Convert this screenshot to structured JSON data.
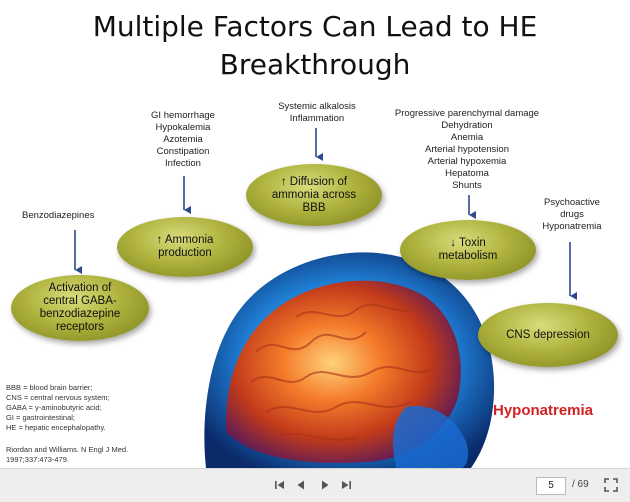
{
  "slide": {
    "title_line1": "Multiple Factors Can Lead to HE",
    "title_line2": "Breakthrough",
    "factors": {
      "benzodiazepines": [
        "Benzodiazepines"
      ],
      "gi": [
        "GI hemorrhage",
        "Hypokalemia",
        "Azotemia",
        "Constipation",
        "Infection"
      ],
      "systemic": [
        "Systemic alkalosis",
        "Inflammation"
      ],
      "progressive": [
        "Progressive parenchymal damage",
        "Dehydration",
        "Anemia",
        "Arterial hypotension",
        "Arterial hypoxemia",
        "Hepatoma",
        "Shunts"
      ],
      "psychoactive": [
        "Psychoactive",
        "drugs",
        "Hyponatremia"
      ]
    },
    "ellipses": {
      "gaba": [
        "Activation of",
        "central GABA-",
        "benzodiazepine",
        "receptors"
      ],
      "ammonia": [
        "↑ Ammonia",
        "production"
      ],
      "diffusion": [
        "↑ Diffusion of",
        "ammonia across",
        "BBB"
      ],
      "toxin": [
        "↓ Toxin",
        "metabolism"
      ],
      "cns": [
        "CNS depression"
      ]
    },
    "hyponatremia_label": "Hyponatremia",
    "footnotes": [
      "BBB = blood brain barrier;",
      "CNS = central nervous system;",
      "GABA = γ-aminobutyric acid;",
      "GI = gastrointestinal;",
      "HE = hepatic encephalopathy."
    ],
    "citation": [
      "Riordan and Williams. N Engl J Med.",
      "1997;337:473-479."
    ]
  },
  "toolbar": {
    "current_page": "5",
    "total_pages": "/ 69",
    "icons": [
      "first-page-icon",
      "previous-page-icon",
      "next-page-icon",
      "last-page-icon",
      "fullscreen-icon"
    ]
  },
  "colors": {
    "ellipse": "#aeb23c",
    "arrow": "#2c4a8c",
    "hyponatremia": "#d42020",
    "toolbar": "#eeeeee"
  }
}
